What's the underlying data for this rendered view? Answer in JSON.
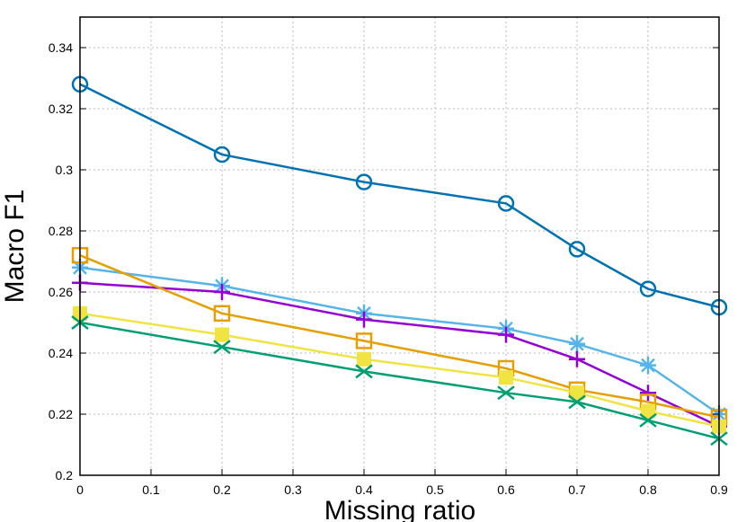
{
  "chart_data": {
    "type": "line",
    "title": "",
    "xlabel": "Missing ratio",
    "ylabel": "Macro F1",
    "xlim": [
      0,
      0.9
    ],
    "ylim": [
      0.2,
      0.35
    ],
    "xticks": [
      "0",
      "0.1",
      "0.2",
      "0.3",
      "0.4",
      "0.5",
      "0.6",
      "0.7",
      "0.8",
      "0.9"
    ],
    "yticks": [
      "0.2",
      "0.22",
      "0.24",
      "0.26",
      "0.28",
      "0.3",
      "0.32",
      "0.34"
    ],
    "grid": true,
    "x": [
      0,
      0.2,
      0.4,
      0.6,
      0.7,
      0.8,
      0.9
    ],
    "series": [
      {
        "marker": "circle",
        "color": "#0072b2",
        "values": [
          0.328,
          0.305,
          0.296,
          0.289,
          0.274,
          0.261,
          0.255
        ]
      },
      {
        "marker": "asterisk",
        "color": "#56b4e9",
        "values": [
          0.268,
          0.262,
          0.253,
          0.248,
          0.243,
          0.236,
          0.22
        ]
      },
      {
        "marker": "plus",
        "color": "#9400d3",
        "values": [
          0.263,
          0.26,
          0.251,
          0.246,
          0.238,
          0.227,
          0.216
        ]
      },
      {
        "marker": "square-open",
        "color": "#e69f00",
        "values": [
          0.272,
          0.253,
          0.244,
          0.235,
          0.228,
          0.224,
          0.219
        ]
      },
      {
        "marker": "square-filled",
        "color": "#f0e442",
        "values": [
          0.253,
          0.246,
          0.238,
          0.232,
          0.227,
          0.221,
          0.216
        ]
      },
      {
        "marker": "x",
        "color": "#009e73",
        "values": [
          0.25,
          0.242,
          0.234,
          0.227,
          0.224,
          0.218,
          0.212
        ]
      }
    ]
  }
}
